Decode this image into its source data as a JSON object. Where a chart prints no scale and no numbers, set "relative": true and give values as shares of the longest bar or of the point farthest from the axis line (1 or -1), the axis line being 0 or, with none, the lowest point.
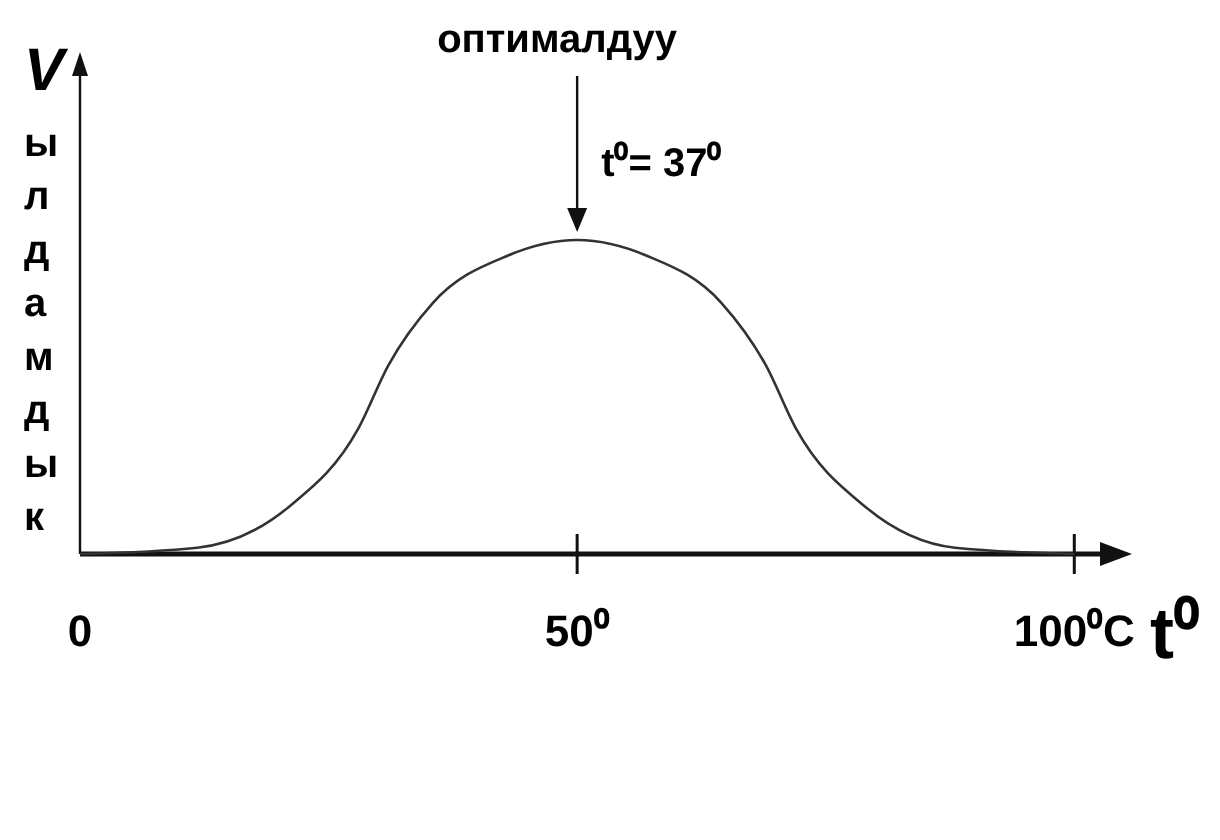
{
  "chart_data": {
    "type": "line",
    "relative": true,
    "xlabel": "t⁰",
    "ylabel": "V",
    "x": [
      0,
      11.8,
      21,
      28,
      31,
      35.5,
      43,
      50,
      57,
      64.5,
      69,
      72,
      79,
      88,
      100
    ],
    "series": [
      {
        "color": "#333333",
        "values": [
          0,
          0.02,
          0.15,
          0.4,
          0.6,
          0.8,
          0.95,
          1,
          0.95,
          0.8,
          0.6,
          0.4,
          0.15,
          0.02,
          0
        ]
      }
    ],
    "xlim": [
      0,
      105
    ],
    "xticks": [
      0,
      {
        "value": 50,
        "label": "50⁰"
      },
      {
        "value": 100,
        "label": "100⁰C"
      }
    ],
    "grid": false,
    "marker": "none",
    "line_style": "solid",
    "annotations": [
      "ылдамдык",
      "оптималдуу",
      "t⁰= 37⁰"
    ]
  }
}
